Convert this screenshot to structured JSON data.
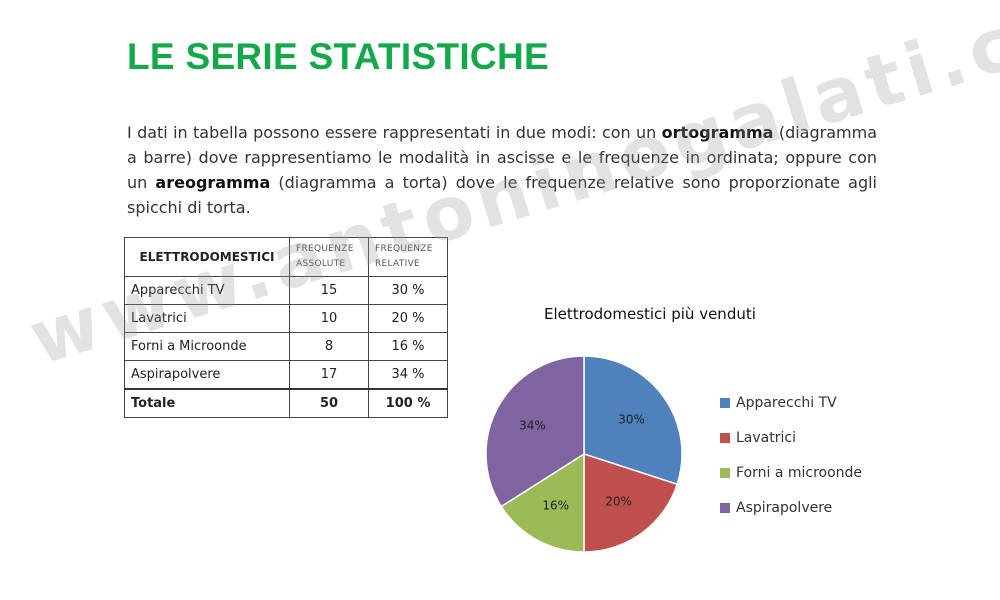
{
  "slide": {
    "title": "LE SERIE STATISTICHE",
    "intro": {
      "p1": "I dati in tabella possono essere rappresentati in due modi: con un ",
      "b1": "ortogramma",
      "p2": " (diagramma a barre) dove rappresentiamo le modalità in ascisse e le frequenze in ordinata; oppure con un ",
      "b2": "areogramma",
      "p3": " (diagramma a torta) dove le frequenze relative sono proporzionate agli spicchi di torta."
    },
    "watermark": "www.antoninogalati.com"
  },
  "table": {
    "headers": [
      "ELETTRODOMESTICI",
      "FREQUENZE ASSOLUTE",
      "FREQUENZE RELATIVE"
    ],
    "rows": [
      {
        "label": "Apparecchi TV",
        "abs": "15",
        "rel": "30 %"
      },
      {
        "label": "Lavatrici",
        "abs": "10",
        "rel": "20 %"
      },
      {
        "label": "Forni a Microonde",
        "abs": "8",
        "rel": "16 %"
      },
      {
        "label": "Aspirapolvere",
        "abs": "17",
        "rel": "34 %"
      }
    ],
    "total": {
      "label": "Totale",
      "abs": "50",
      "rel": "100 %"
    }
  },
  "chart_data": {
    "type": "pie",
    "title": "Elettrodomestici più venduti",
    "categories": [
      "Apparecchi TV",
      "Lavatrici",
      "Forni a microonde",
      "Aspirapolvere"
    ],
    "values": [
      30,
      20,
      16,
      34
    ],
    "data_labels": [
      "30%",
      "20%",
      "16%",
      "34%"
    ],
    "colors": [
      "#4f81bd",
      "#c0504d",
      "#9bbb59",
      "#8064a2"
    ],
    "legend_position": "right",
    "start": "top",
    "direction": "clockwise"
  }
}
